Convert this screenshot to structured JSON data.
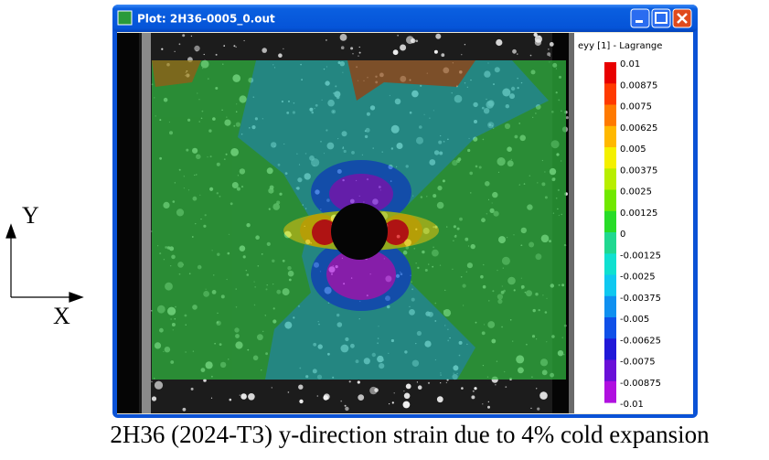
{
  "window": {
    "title": "Plot: 2H36-0005_0.out"
  },
  "legend": {
    "title": "eyy [1] - Lagrange",
    "labels": [
      "0.01",
      "0.00875",
      "0.0075",
      "0.00625",
      "0.005",
      "0.00375",
      "0.0025",
      "0.00125",
      "0",
      "-0.00125",
      "-0.0025",
      "-0.00375",
      "-0.005",
      "-0.00625",
      "-0.0075",
      "-0.00875",
      "-0.01"
    ],
    "colors": [
      "#e80000",
      "#ff3a00",
      "#ff7a00",
      "#ffb800",
      "#f4f000",
      "#b8ee00",
      "#70e800",
      "#28dc28",
      "#20d890",
      "#10e0d0",
      "#10c8f0",
      "#1090f0",
      "#1050e8",
      "#2018d8",
      "#6a10d8",
      "#b010e0"
    ]
  },
  "axes": {
    "y_label": "Y",
    "x_label": "X"
  },
  "caption": "2H36 (2024-T3) y-direction strain due to 4% cold expansion"
}
